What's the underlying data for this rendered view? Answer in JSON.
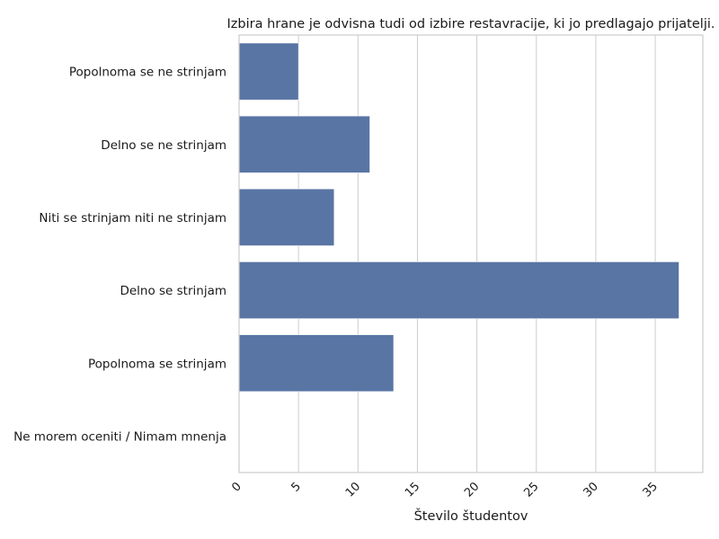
{
  "chart_data": {
    "type": "bar",
    "orientation": "horizontal",
    "title": "Izbira hrane je odvisna tudi od izbire restavracije, ki jo predlagajo prijatelji.",
    "xlabel": "Število študentov",
    "ylabel": "",
    "categories": [
      "Popolnoma se ne strinjam",
      "Delno se ne strinjam",
      "Niti se strinjam niti ne strinjam",
      "Delno se strinjam",
      "Popolnoma se strinjam",
      "Ne morem oceniti / Nimam mnenja"
    ],
    "values": [
      5,
      11,
      8,
      37,
      13,
      0
    ],
    "xlim": [
      0,
      39
    ],
    "xticks": [
      "0",
      "5",
      "10",
      "15",
      "20",
      "25",
      "30",
      "35"
    ],
    "grid": "vertical",
    "bar_color": "#5975a4"
  }
}
